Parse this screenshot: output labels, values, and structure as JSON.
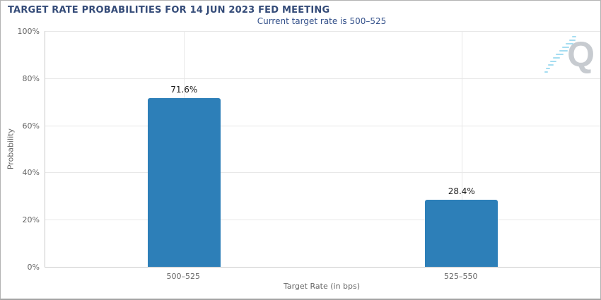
{
  "chart_data": {
    "type": "bar",
    "title": "TARGET RATE PROBABILITIES FOR 14 JUN 2023 FED MEETING",
    "subtitle": "Current target rate is 500–525",
    "categories": [
      "500–525",
      "525–550"
    ],
    "values": [
      71.6,
      28.4
    ],
    "bar_labels": [
      "71.6%",
      "28.4%"
    ],
    "xlabel": "Target Rate (in bps)",
    "ylabel": "Probability",
    "ylim": [
      0,
      100
    ],
    "yticks": [
      "0%",
      "20%",
      "40%",
      "60%",
      "80%",
      "100%"
    ],
    "grid": true,
    "legend": false
  },
  "logo": {
    "letter": "Q"
  },
  "colors": {
    "title": "#344b78",
    "subtitle": "#33508a",
    "bar": "#2d7fb8",
    "axis_text": "#666666",
    "gridline": "#e7e7e7",
    "axis_line": "#c9c9c9",
    "data_label": "#1d1d1d",
    "logo_letter": "#c7cbd0",
    "logo_dash": "#a5ddf1"
  }
}
